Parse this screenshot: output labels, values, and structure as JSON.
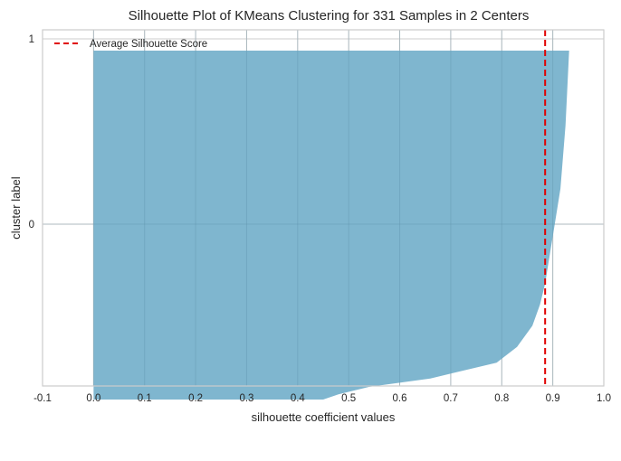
{
  "chart_data": {
    "type": "area",
    "title": "Silhouette Plot of KMeans Clustering for 331 Samples in 2 Centers",
    "xlabel": "silhouette coefficient values",
    "ylabel": "cluster label",
    "xlim": [
      -0.1,
      1.0
    ],
    "x_ticks": [
      "-0.1",
      "0.0",
      "0.1",
      "0.2",
      "0.3",
      "0.4",
      "0.5",
      "0.6",
      "0.7",
      "0.8",
      "0.9",
      "1.0"
    ],
    "y_ticks": [
      "0",
      "1"
    ],
    "clusters": [
      {
        "label": "0",
        "n_samples": 331,
        "color": "#7fb6cf",
        "sorted_coefficients_profile": [
          {
            "rank": 0,
            "value": 0.45
          },
          {
            "rank": 5,
            "value": 0.48
          },
          {
            "rank": 12,
            "value": 0.54
          },
          {
            "rank": 20,
            "value": 0.66
          },
          {
            "rank": 35,
            "value": 0.79
          },
          {
            "rank": 50,
            "value": 0.83
          },
          {
            "rank": 70,
            "value": 0.86
          },
          {
            "rank": 90,
            "value": 0.875
          },
          {
            "rank": 110,
            "value": 0.885
          },
          {
            "rank": 140,
            "value": 0.895
          },
          {
            "rank": 170,
            "value": 0.905
          },
          {
            "rank": 200,
            "value": 0.915
          },
          {
            "rank": 230,
            "value": 0.92
          },
          {
            "rank": 260,
            "value": 0.925
          },
          {
            "rank": 290,
            "value": 0.928
          },
          {
            "rank": 331,
            "value": 0.932
          }
        ]
      }
    ],
    "average_silhouette_score": 0.885,
    "average_line_color": "#e00000",
    "legend": {
      "label": "Average Silhouette Score",
      "placement": "top-left"
    },
    "grid": true
  }
}
